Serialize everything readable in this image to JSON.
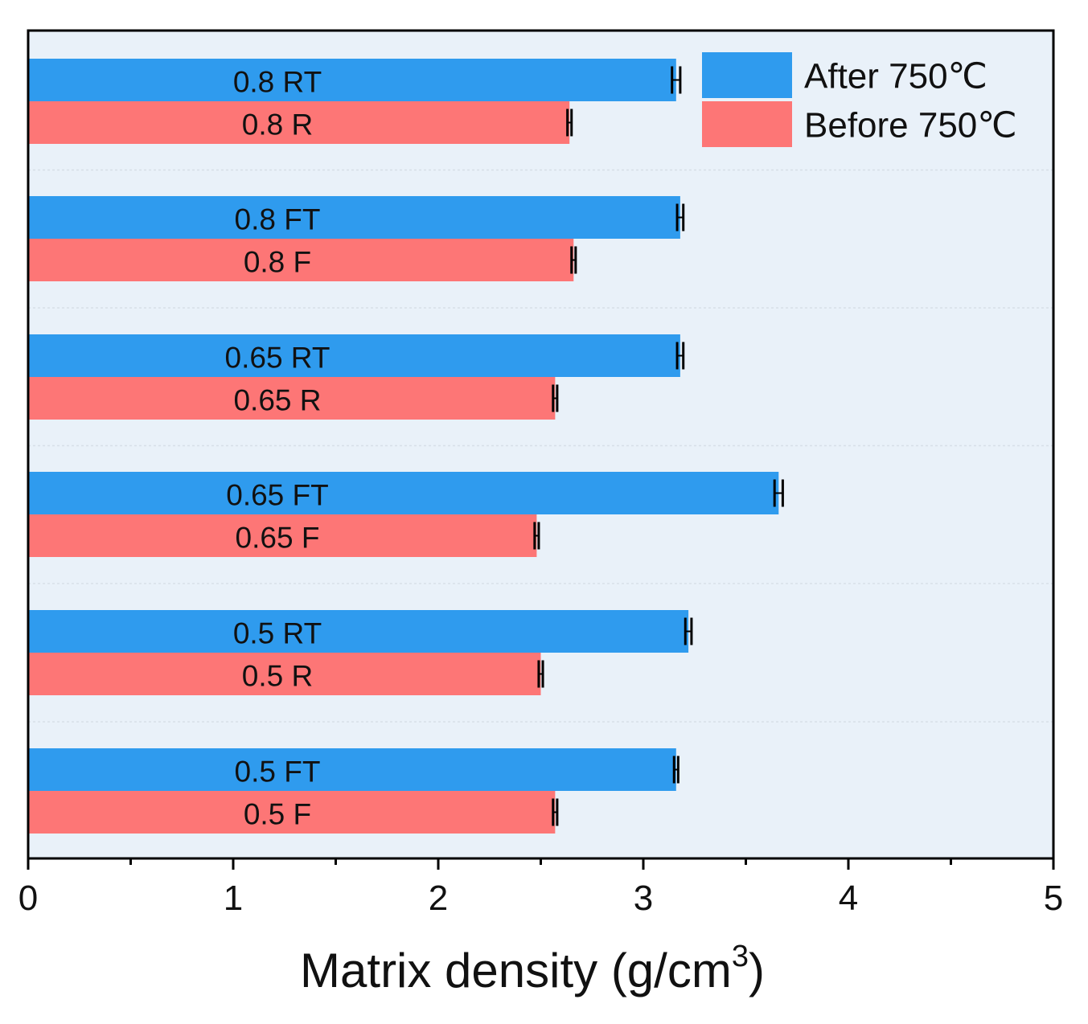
{
  "chart_data": {
    "type": "bar",
    "orientation": "horizontal",
    "title": "",
    "xlabel": "Matrix density (g/cm",
    "xlabel_superscript": "3",
    "xlabel_suffix": ")",
    "ylabel": "",
    "xlim": [
      0,
      5
    ],
    "x_ticks": [
      0,
      1,
      2,
      3,
      4,
      5
    ],
    "x_tick_labels": [
      "0",
      "1",
      "2",
      "3",
      "4",
      "5"
    ],
    "grid": false,
    "legend_position": "top-right",
    "groups": [
      {
        "bars": [
          {
            "series": "After 750℃",
            "label": "0.8 RT",
            "value": 3.16,
            "error": 0.02
          },
          {
            "series": "Before 750℃",
            "label": "0.8 R",
            "value": 2.64,
            "error": 0.01
          }
        ]
      },
      {
        "bars": [
          {
            "series": "After 750℃",
            "label": "0.8 FT",
            "value": 3.18,
            "error": 0.015
          },
          {
            "series": "Before 750℃",
            "label": "0.8 F",
            "value": 2.66,
            "error": 0.01
          }
        ]
      },
      {
        "bars": [
          {
            "series": "After 750℃",
            "label": "0.65 RT",
            "value": 3.18,
            "error": 0.015
          },
          {
            "series": "Before 750℃",
            "label": "0.65 R",
            "value": 2.57,
            "error": 0.01
          }
        ]
      },
      {
        "bars": [
          {
            "series": "After 750℃",
            "label": "0.65 FT",
            "value": 3.66,
            "error": 0.02
          },
          {
            "series": "Before 750℃",
            "label": "0.65 F",
            "value": 2.48,
            "error": 0.01
          }
        ]
      },
      {
        "bars": [
          {
            "series": "After 750℃",
            "label": "0.5 RT",
            "value": 3.22,
            "error": 0.015
          },
          {
            "series": "Before 750℃",
            "label": "0.5 R",
            "value": 2.5,
            "error": 0.01
          }
        ]
      },
      {
        "bars": [
          {
            "series": "After 750℃",
            "label": "0.5 FT",
            "value": 3.16,
            "error": 0.01
          },
          {
            "series": "Before 750℃",
            "label": "0.5 F",
            "value": 2.57,
            "error": 0.01
          }
        ]
      }
    ],
    "series": [
      {
        "name": "After 750℃",
        "color": "#2f9bee"
      },
      {
        "name": "Before 750℃",
        "color": "#fd7676"
      }
    ],
    "plot_background": "#e9f1f9"
  }
}
